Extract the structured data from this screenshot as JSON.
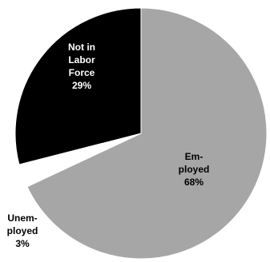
{
  "chart_data": {
    "type": "pie",
    "slices": [
      {
        "label_lines": [
          "Em-",
          "ployed",
          "68%"
        ],
        "value": 68,
        "color": "#a6a6a6",
        "text_color": "#000000",
        "exploded": false
      },
      {
        "label_lines": [
          "Unem-",
          "ployed",
          "3%"
        ],
        "value": 3,
        "color": "#ffffff",
        "text_color": "#000000",
        "exploded": true
      },
      {
        "label_lines": [
          "Not in",
          "Labor",
          "Force",
          "29%"
        ],
        "value": 29,
        "color": "#000000",
        "text_color": "#ffffff",
        "exploded": false
      }
    ],
    "legend": "none",
    "direction": "clockwise from 12 o'clock"
  }
}
